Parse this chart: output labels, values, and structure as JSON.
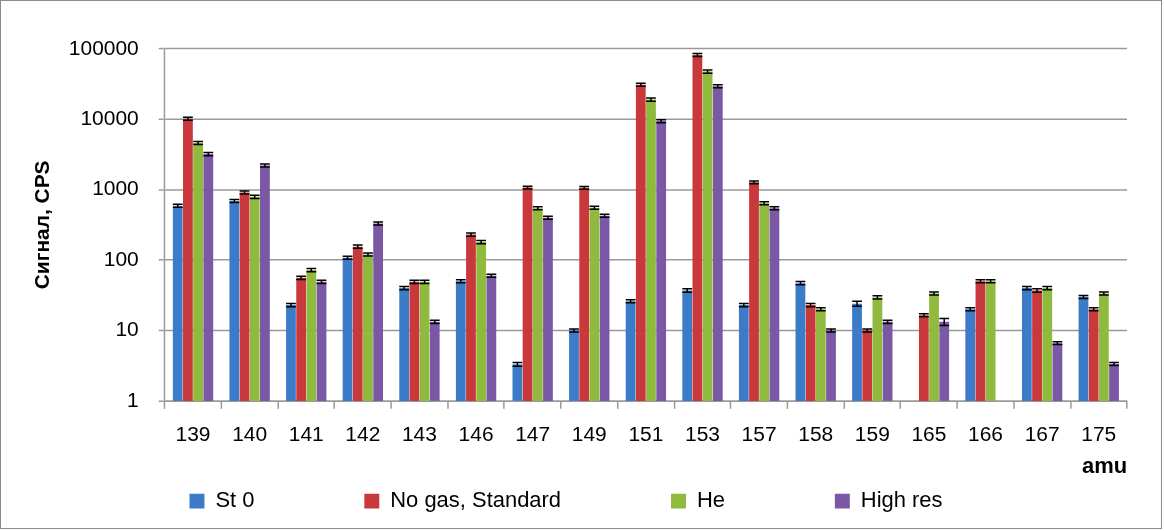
{
  "chart_data": {
    "type": "bar",
    "categories": [
      "139",
      "140",
      "141",
      "142",
      "143",
      "146",
      "147",
      "149",
      "151",
      "153",
      "157",
      "158",
      "159",
      "165",
      "166",
      "167",
      "175"
    ],
    "series": [
      {
        "name": "St 0",
        "color": "#3b7bc8",
        "values": [
          590,
          690,
          23,
          108,
          40,
          50,
          3.3,
          10,
          26,
          37,
          23,
          47,
          24,
          null,
          20,
          40,
          30
        ],
        "errors": [
          30,
          35,
          1.2,
          5,
          2,
          2.5,
          0.2,
          0.5,
          1.3,
          2,
          1.2,
          2.5,
          2,
          null,
          1,
          2,
          1.5
        ]
      },
      {
        "name": "No gas, Standard",
        "color": "#c9383a",
        "values": [
          10200,
          910,
          56,
          155,
          49,
          230,
          1070,
          1060,
          31000,
          82000,
          1270,
          23,
          10,
          16.5,
          50,
          37,
          20
        ],
        "errors": [
          500,
          45,
          3,
          8,
          2.5,
          12,
          50,
          50,
          1500,
          4000,
          60,
          1.2,
          0.5,
          0.8,
          2.5,
          2,
          1
        ]
      },
      {
        "name": "He",
        "color": "#8fba3e",
        "values": [
          4600,
          790,
          72,
          120,
          49,
          180,
          545,
          555,
          19000,
          47500,
          640,
          20,
          29.5,
          33.5,
          50,
          40,
          33.5
        ],
        "errors": [
          230,
          40,
          4,
          6,
          2.5,
          9,
          27,
          28,
          950,
          2400,
          32,
          1,
          1.5,
          1.7,
          2.5,
          2,
          1.7
        ]
      },
      {
        "name": "High res",
        "color": "#7b58a6",
        "values": [
          3200,
          2200,
          49,
          330,
          13.3,
          60,
          400,
          425,
          9400,
          29500,
          545,
          10,
          13.3,
          13.3,
          null,
          6.6,
          3.35
        ],
        "errors": [
          160,
          110,
          2.5,
          16,
          0.7,
          3,
          20,
          21,
          470,
          1500,
          27,
          0.5,
          0.7,
          1.5,
          null,
          0.3,
          0.17
        ]
      }
    ],
    "xlabel": "amu",
    "ylabel": "Сигнал, CPS",
    "log": true,
    "ylim": [
      1,
      100000
    ],
    "yticks": [
      1,
      10,
      100,
      1000,
      10000,
      100000
    ],
    "grid": "y",
    "legend": "bottom"
  }
}
